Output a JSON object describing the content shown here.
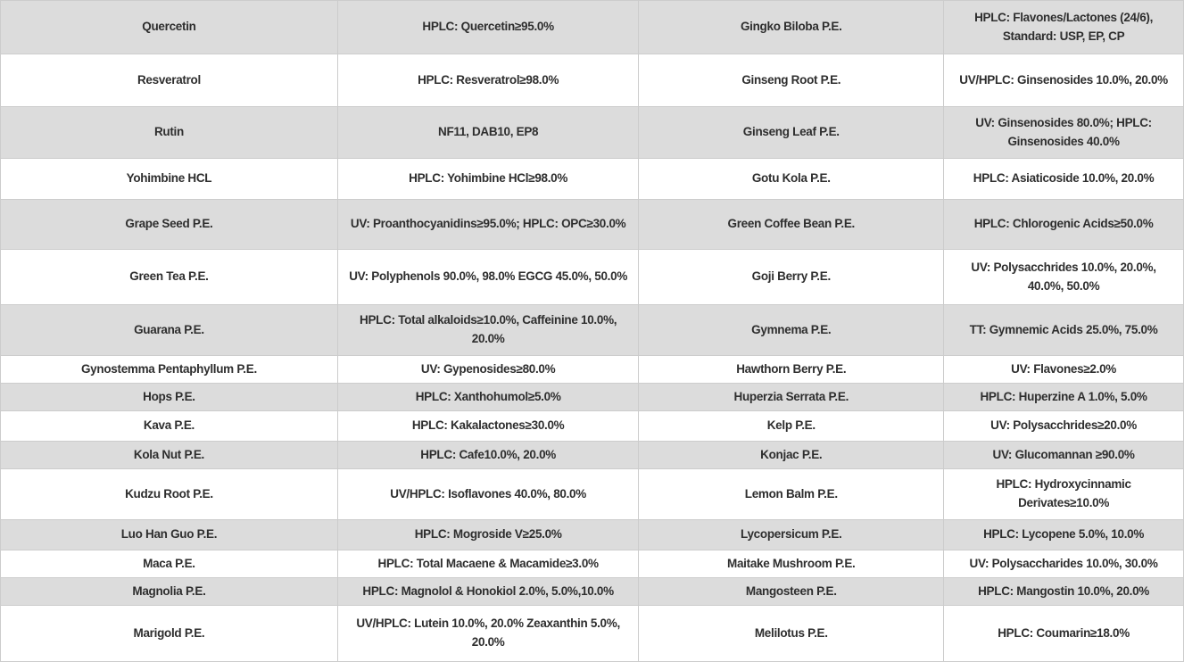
{
  "colors": {
    "row_alt": "#dcdcdc",
    "row_base": "#ffffff",
    "border": "#cccccc",
    "text": "#2e2e2e"
  },
  "table": {
    "rows": [
      {
        "cells": [
          "Quercetin",
          "HPLC: Quercetin≥95.0%",
          "Gingko Biloba P.E.",
          "HPLC: Flavones/Lactones (24/6), Standard: USP, EP, CP"
        ]
      },
      {
        "cells": [
          "Resveratrol",
          "HPLC: Resveratrol≥98.0%",
          "Ginseng Root P.E.",
          "UV/HPLC: Ginsenosides 10.0%, 20.0%"
        ]
      },
      {
        "cells": [
          "Rutin",
          "NF11, DAB10, EP8",
          "Ginseng Leaf P.E.",
          "UV: Ginsenosides 80.0%; HPLC: Ginsenosides 40.0%"
        ]
      },
      {
        "cells": [
          "Yohimbine HCL",
          "HPLC: Yohimbine HCl≥98.0%",
          "Gotu Kola P.E.",
          "HPLC: Asiaticoside 10.0%, 20.0%"
        ]
      },
      {
        "cells": [
          "Grape Seed P.E.",
          "UV: Proanthocyanidins≥95.0%; HPLC: OPC≥30.0%",
          "Green Coffee Bean P.E.",
          "HPLC: Chlorogenic Acids≥50.0%"
        ]
      },
      {
        "cells": [
          "Green Tea P.E.",
          "UV: Polyphenols 90.0%, 98.0% EGCG 45.0%, 50.0%",
          "Goji Berry P.E.",
          "UV: Polysacchrides 10.0%, 20.0%, 40.0%, 50.0%"
        ]
      },
      {
        "cells": [
          "Guarana P.E.",
          "HPLC: Total alkaloids≥10.0%, Caffeinine 10.0%, 20.0%",
          "Gymnema P.E.",
          "TT: Gymnemic Acids 25.0%, 75.0%"
        ]
      },
      {
        "cells": [
          "Gynostemma Pentaphyllum P.E.",
          "UV: Gypenosides≥80.0%",
          "Hawthorn Berry P.E.",
          "UV: Flavones≥2.0%"
        ]
      },
      {
        "cells": [
          "Hops P.E.",
          "HPLC: Xanthohumol≥5.0%",
          "Huperzia Serrata P.E.",
          "HPLC: Huperzine A 1.0%, 5.0%"
        ]
      },
      {
        "cells": [
          "Kava P.E.",
          "HPLC: Kakalactones≥30.0%",
          "Kelp P.E.",
          "UV: Polysacchrides≥20.0%"
        ]
      },
      {
        "cells": [
          "Kola Nut P.E.",
          "HPLC: Cafe10.0%, 20.0%",
          "Konjac P.E.",
          "UV: Glucomannan ≥90.0%"
        ]
      },
      {
        "cells": [
          "Kudzu Root P.E.",
          "UV/HPLC: Isoflavones 40.0%, 80.0%",
          "Lemon Balm P.E.",
          "HPLC: Hydroxycinnamic Derivates≥10.0%"
        ]
      },
      {
        "cells": [
          "Luo Han Guo P.E.",
          "HPLC: Mogroside V≥25.0%",
          "Lycopersicum P.E.",
          "HPLC: Lycopene 5.0%, 10.0%"
        ]
      },
      {
        "cells": [
          "Maca P.E.",
          "HPLC: Total Macaene & Macamide≥3.0%",
          "Maitake Mushroom P.E.",
          "UV: Polysaccharides 10.0%, 30.0%"
        ]
      },
      {
        "cells": [
          "Magnolia P.E.",
          "HPLC: Magnolol & Honokiol 2.0%, 5.0%,10.0%",
          "Mangosteen P.E.",
          "HPLC: Mangostin 10.0%, 20.0%"
        ]
      },
      {
        "cells": [
          "Marigold P.E.",
          "UV/HPLC: Lutein 10.0%, 20.0% Zeaxanthin 5.0%, 20.0%",
          "Melilotus P.E.",
          "HPLC: Coumarin≥18.0%"
        ]
      }
    ]
  }
}
